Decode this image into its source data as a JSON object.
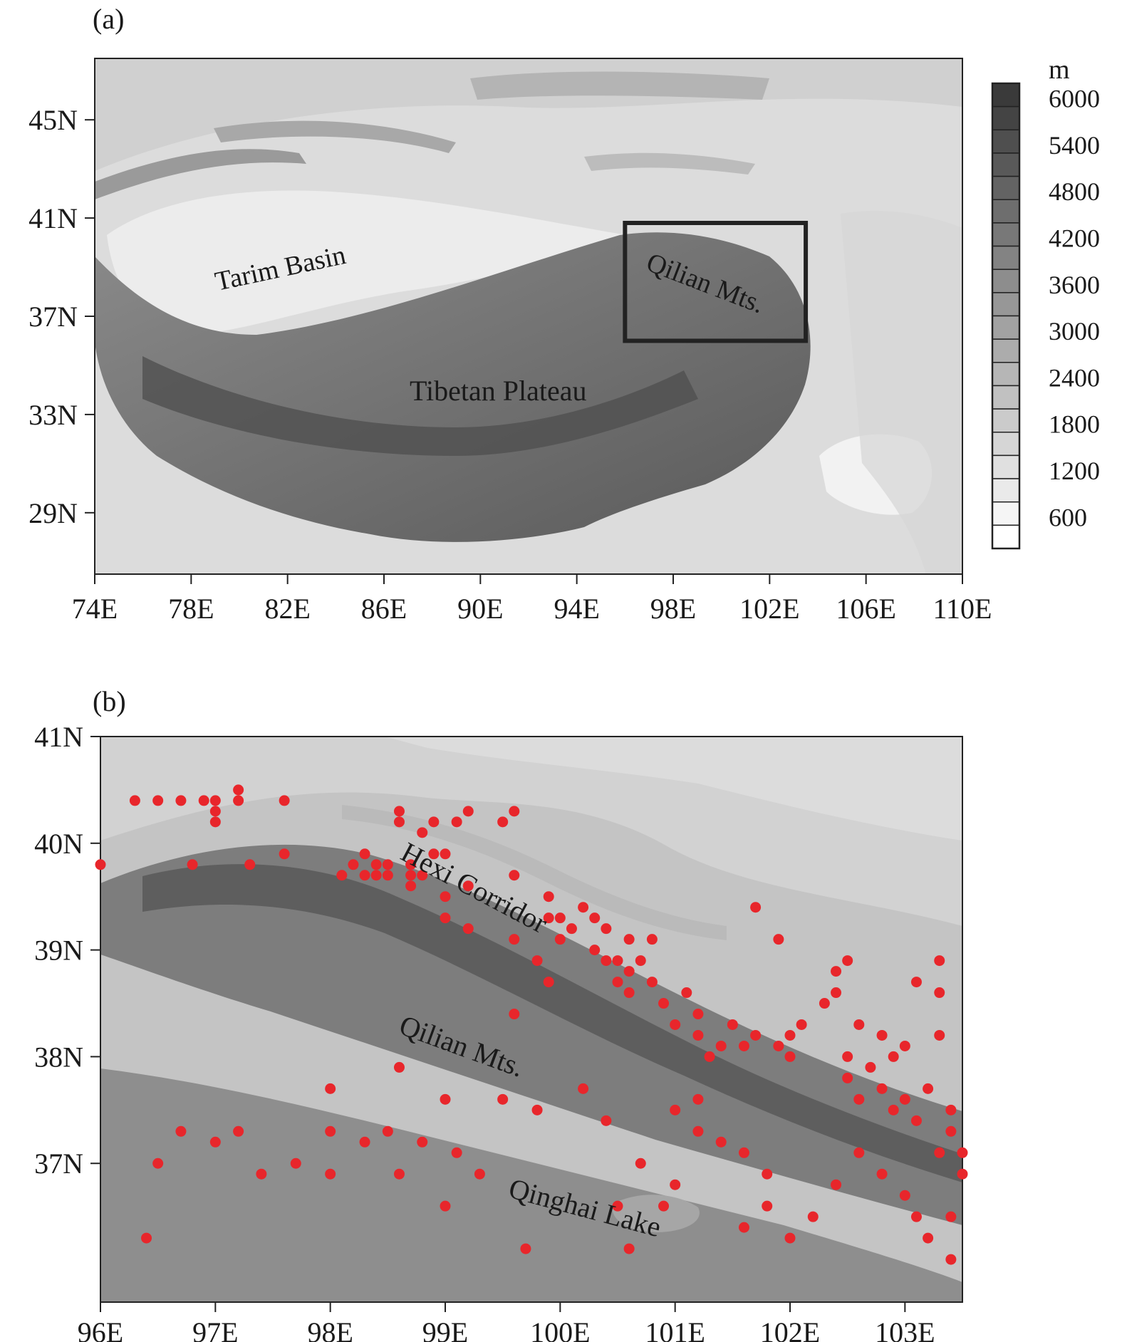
{
  "panel_a": {
    "label": "(a)",
    "colorbar": {
      "unit": "m",
      "levels": [
        "6000",
        "5400",
        "4800",
        "4200",
        "3600",
        "3000",
        "2400",
        "1800",
        "1200",
        "600"
      ]
    },
    "x_ticks": [
      "74E",
      "78E",
      "82E",
      "86E",
      "90E",
      "94E",
      "98E",
      "102E",
      "106E",
      "110E"
    ],
    "y_ticks": [
      "45N",
      "41N",
      "37N",
      "33N",
      "29N"
    ],
    "annotations": {
      "tarim": "Tarim Basin",
      "qilian": "Qilian Mts.",
      "tibet": "Tibetan Plateau"
    },
    "study_box": {
      "lon": [
        96,
        103.5
      ],
      "lat": [
        36,
        40.8
      ]
    }
  },
  "panel_b": {
    "label": "(b)",
    "x_ticks": [
      "96E",
      "97E",
      "98E",
      "99E",
      "100E",
      "101E",
      "102E",
      "103E"
    ],
    "y_ticks": [
      "41N",
      "40N",
      "39N",
      "38N",
      "37N"
    ],
    "annotations": {
      "hexi": "Hexi Corridor",
      "qilian": "Qilian Mts.",
      "qinghai": "Qinghai Lake"
    },
    "stations_color": "#e8262b",
    "stations": [
      [
        96.0,
        39.8
      ],
      [
        96.3,
        40.4
      ],
      [
        96.5,
        40.4
      ],
      [
        96.7,
        40.4
      ],
      [
        96.8,
        39.8
      ],
      [
        96.9,
        40.4
      ],
      [
        97.0,
        40.4
      ],
      [
        97.0,
        40.3
      ],
      [
        97.0,
        40.2
      ],
      [
        97.2,
        40.4
      ],
      [
        97.2,
        40.5
      ],
      [
        97.3,
        39.8
      ],
      [
        97.6,
        40.4
      ],
      [
        97.6,
        39.9
      ],
      [
        98.1,
        39.7
      ],
      [
        98.2,
        39.8
      ],
      [
        98.3,
        39.9
      ],
      [
        98.3,
        39.7
      ],
      [
        98.4,
        39.8
      ],
      [
        98.4,
        39.7
      ],
      [
        98.5,
        39.7
      ],
      [
        98.5,
        39.8
      ],
      [
        98.6,
        40.3
      ],
      [
        98.6,
        40.2
      ],
      [
        98.7,
        39.8
      ],
      [
        98.7,
        39.7
      ],
      [
        98.7,
        39.6
      ],
      [
        98.8,
        39.7
      ],
      [
        98.8,
        40.1
      ],
      [
        98.9,
        39.9
      ],
      [
        98.9,
        40.2
      ],
      [
        99.0,
        39.9
      ],
      [
        99.1,
        40.2
      ],
      [
        99.2,
        40.3
      ],
      [
        99.5,
        40.2
      ],
      [
        99.6,
        40.3
      ],
      [
        99.0,
        39.3
      ],
      [
        99.0,
        39.5
      ],
      [
        99.2,
        39.6
      ],
      [
        99.2,
        39.2
      ],
      [
        99.6,
        39.7
      ],
      [
        99.6,
        39.1
      ],
      [
        99.6,
        38.4
      ],
      [
        99.9,
        39.5
      ],
      [
        99.9,
        39.3
      ],
      [
        99.8,
        38.9
      ],
      [
        99.9,
        38.7
      ],
      [
        100.0,
        39.1
      ],
      [
        100.0,
        39.3
      ],
      [
        100.1,
        39.2
      ],
      [
        100.2,
        39.4
      ],
      [
        100.3,
        39.3
      ],
      [
        100.4,
        39.2
      ],
      [
        100.3,
        39.0
      ],
      [
        100.4,
        38.9
      ],
      [
        100.5,
        38.9
      ],
      [
        100.6,
        39.1
      ],
      [
        100.5,
        38.7
      ],
      [
        100.6,
        38.8
      ],
      [
        100.7,
        38.9
      ],
      [
        100.6,
        38.6
      ],
      [
        100.8,
        39.1
      ],
      [
        100.8,
        38.7
      ],
      [
        100.9,
        38.5
      ],
      [
        101.0,
        38.3
      ],
      [
        101.1,
        38.6
      ],
      [
        101.2,
        38.4
      ],
      [
        101.2,
        38.2
      ],
      [
        101.3,
        38.0
      ],
      [
        101.4,
        38.1
      ],
      [
        101.5,
        38.3
      ],
      [
        101.6,
        38.1
      ],
      [
        101.7,
        39.4
      ],
      [
        101.7,
        38.2
      ],
      [
        101.9,
        38.1
      ],
      [
        101.9,
        39.1
      ],
      [
        102.0,
        38.2
      ],
      [
        102.0,
        38.0
      ],
      [
        102.1,
        38.3
      ],
      [
        102.3,
        38.5
      ],
      [
        102.4,
        38.8
      ],
      [
        102.5,
        38.9
      ],
      [
        102.4,
        38.6
      ],
      [
        102.5,
        38.0
      ],
      [
        102.6,
        38.3
      ],
      [
        102.8,
        38.2
      ],
      [
        102.9,
        38.0
      ],
      [
        103.0,
        38.1
      ],
      [
        103.1,
        38.7
      ],
      [
        103.3,
        38.9
      ],
      [
        103.3,
        38.6
      ],
      [
        103.3,
        38.2
      ],
      [
        102.5,
        37.8
      ],
      [
        102.6,
        37.6
      ],
      [
        102.7,
        37.9
      ],
      [
        102.8,
        37.7
      ],
      [
        102.9,
        37.5
      ],
      [
        103.0,
        37.6
      ],
      [
        103.1,
        37.4
      ],
      [
        103.2,
        37.7
      ],
      [
        103.4,
        37.5
      ],
      [
        103.4,
        37.3
      ],
      [
        103.5,
        37.1
      ],
      [
        103.3,
        37.1
      ],
      [
        101.0,
        37.5
      ],
      [
        101.2,
        37.6
      ],
      [
        101.4,
        37.2
      ],
      [
        101.6,
        37.1
      ],
      [
        101.8,
        36.9
      ],
      [
        100.2,
        37.7
      ],
      [
        100.4,
        37.4
      ],
      [
        100.7,
        37.0
      ],
      [
        100.5,
        36.6
      ],
      [
        101.2,
        37.3
      ],
      [
        101.6,
        36.4
      ],
      [
        101.8,
        36.6
      ],
      [
        102.0,
        36.3
      ],
      [
        102.2,
        36.5
      ],
      [
        102.4,
        36.8
      ],
      [
        102.6,
        37.1
      ],
      [
        102.8,
        36.9
      ],
      [
        103.0,
        36.7
      ],
      [
        103.1,
        36.5
      ],
      [
        103.2,
        36.3
      ],
      [
        103.4,
        36.5
      ],
      [
        103.5,
        36.9
      ],
      [
        103.4,
        36.1
      ],
      [
        99.0,
        37.6
      ],
      [
        98.6,
        37.9
      ],
      [
        98.3,
        37.2
      ],
      [
        98.5,
        37.3
      ],
      [
        98.0,
        37.3
      ],
      [
        97.7,
        37.0
      ],
      [
        97.4,
        36.9
      ],
      [
        97.2,
        37.3
      ],
      [
        97.0,
        37.2
      ],
      [
        96.7,
        37.3
      ],
      [
        96.4,
        36.3
      ],
      [
        98.0,
        37.7
      ],
      [
        98.8,
        37.2
      ],
      [
        99.1,
        37.1
      ],
      [
        99.5,
        37.6
      ],
      [
        99.8,
        37.5
      ],
      [
        100.9,
        36.6
      ],
      [
        101.0,
        36.8
      ],
      [
        100.6,
        36.2
      ],
      [
        99.7,
        36.2
      ],
      [
        98.0,
        36.9
      ],
      [
        98.6,
        36.9
      ],
      [
        99.0,
        36.6
      ],
      [
        99.3,
        36.9
      ],
      [
        96.5,
        37.0
      ]
    ]
  }
}
